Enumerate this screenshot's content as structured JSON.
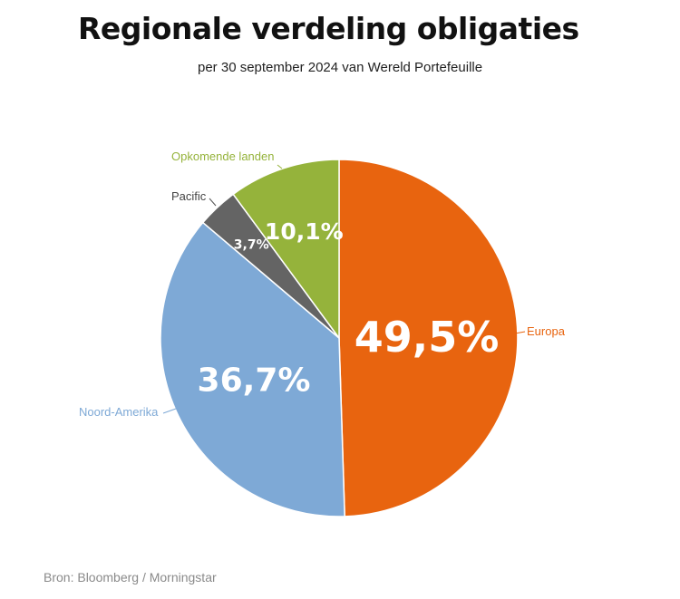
{
  "title": "Regionale verdeling obligaties",
  "subtitle": "per 30 september 2024 van Wereld Portefeuille",
  "source": "Bron: Bloomberg / Morningstar",
  "chart_data": {
    "type": "pie",
    "slices": [
      {
        "label": "Europa",
        "value": 49.5,
        "display": "49,5%",
        "color": "#E8640F"
      },
      {
        "label": "Noord-Amerika",
        "value": 36.7,
        "display": "36,7%",
        "color": "#7EA9D6"
      },
      {
        "label": "Pacific",
        "value": 3.7,
        "display": "3,7%",
        "color": "#646464"
      },
      {
        "label": "Opkomende landen",
        "value": 10.1,
        "display": "10,1%",
        "color": "#95B33B"
      }
    ],
    "start": "top",
    "direction": "clockwise"
  }
}
